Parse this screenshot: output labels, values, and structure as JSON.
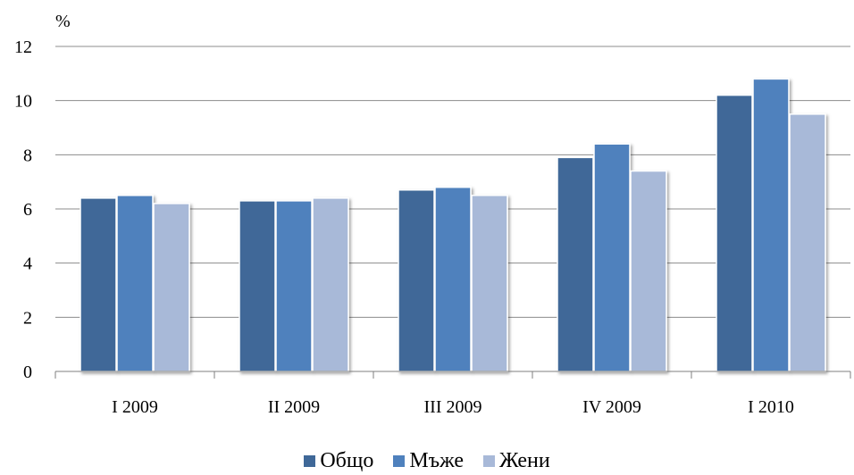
{
  "chart_data": {
    "type": "bar",
    "unit": "%",
    "categories": [
      "I 2009",
      "II 2009",
      "III 2009",
      "IV 2009",
      "I 2010"
    ],
    "series": [
      {
        "name": "Общо",
        "color": "#3f6898",
        "values": [
          6.4,
          6.3,
          6.7,
          7.9,
          10.2
        ]
      },
      {
        "name": "Мъже",
        "color": "#4f81bd",
        "values": [
          6.5,
          6.3,
          6.8,
          8.4,
          10.8
        ]
      },
      {
        "name": "Жени",
        "color": "#a8b9d8",
        "values": [
          6.2,
          6.4,
          6.5,
          7.4,
          9.5
        ]
      }
    ],
    "ylim": [
      0,
      12
    ],
    "yticks": [
      "0",
      "2",
      "4",
      "6",
      "8",
      "10",
      "12"
    ],
    "grid": true,
    "legend_position": "bottom"
  }
}
